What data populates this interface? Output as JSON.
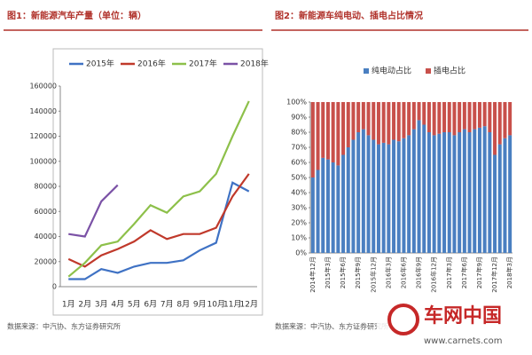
{
  "chart_data": [
    {
      "type": "line",
      "title": "图1：新能源汽车产量（单位：辆）",
      "categories": [
        "1月",
        "2月",
        "3月",
        "4月",
        "5月",
        "6月",
        "7月",
        "8月",
        "9月",
        "10月",
        "11月",
        "12月"
      ],
      "series": [
        {
          "name": "2015年",
          "color": "#3f72c4",
          "values": [
            6000,
            6000,
            14000,
            11000,
            16000,
            19000,
            19000,
            21000,
            29000,
            35000,
            83000,
            76000
          ]
        },
        {
          "name": "2016年",
          "color": "#c0392b",
          "values": [
            22000,
            16000,
            25000,
            30000,
            36000,
            45000,
            38000,
            42000,
            42000,
            47000,
            72000,
            90000
          ]
        },
        {
          "name": "2017年",
          "color": "#8dc04a",
          "values": [
            8000,
            19000,
            33000,
            36000,
            50000,
            65000,
            59000,
            72000,
            76000,
            90000,
            120000,
            148000
          ]
        },
        {
          "name": "2018年",
          "color": "#7b52a6",
          "values": [
            42000,
            40000,
            68000,
            81000,
            null,
            null,
            null,
            null,
            null,
            null,
            null,
            null
          ]
        }
      ],
      "ylim": [
        0,
        160000
      ],
      "yticks": [
        0,
        20000,
        40000,
        60000,
        80000,
        100000,
        120000,
        140000,
        160000
      ],
      "source": "数据来源：中汽协、东方证券研究所"
    },
    {
      "type": "bar",
      "stacked": true,
      "title": "图2：新能源车纯电动、插电占比情况",
      "categories": [
        "2014年12月",
        null,
        null,
        "2015年3月",
        null,
        null,
        "2015年6月",
        null,
        null,
        "2015年9月",
        null,
        null,
        "2015年12月",
        null,
        null,
        "2016年3月",
        null,
        null,
        "2016年6月",
        null,
        null,
        "2016年9月",
        null,
        null,
        "2016年12月",
        null,
        null,
        "2017年3月",
        null,
        null,
        "2017年6月",
        null,
        null,
        "2017年9月",
        null,
        null,
        "2017年12月",
        null,
        null,
        "2018年3月"
      ],
      "series": [
        {
          "name": "纯电动占比",
          "color": "#4a7fc1",
          "values": [
            50,
            55,
            63,
            62,
            60,
            58,
            65,
            70,
            75,
            80,
            82,
            78,
            75,
            72,
            73,
            72,
            75,
            74,
            76,
            78,
            82,
            88,
            85,
            80,
            78,
            79,
            80,
            80,
            78,
            80,
            82,
            80,
            82,
            83,
            84,
            80,
            65,
            72,
            76,
            78
          ]
        },
        {
          "name": "插电占比",
          "color": "#c8504b",
          "values": [
            50,
            45,
            37,
            38,
            40,
            42,
            35,
            30,
            25,
            20,
            18,
            22,
            25,
            28,
            27,
            28,
            25,
            26,
            24,
            22,
            18,
            12,
            15,
            20,
            22,
            21,
            20,
            20,
            22,
            20,
            18,
            20,
            18,
            17,
            16,
            20,
            35,
            28,
            24,
            22
          ]
        }
      ],
      "ylim": [
        0,
        100
      ],
      "yticks": [
        {
          "value": 0,
          "label": "0%"
        },
        {
          "value": 10,
          "label": "10%"
        },
        {
          "value": 20,
          "label": "20%"
        },
        {
          "value": 30,
          "label": "30%"
        },
        {
          "value": 40,
          "label": "40%"
        },
        {
          "value": 50,
          "label": "50%"
        },
        {
          "value": 60,
          "label": "60%"
        },
        {
          "value": 70,
          "label": "70%"
        },
        {
          "value": 80,
          "label": "80%"
        },
        {
          "value": 90,
          "label": "90%"
        },
        {
          "value": 100,
          "label": "100%"
        }
      ],
      "source": "数据来源：中汽协、东方证券研究所"
    }
  ],
  "watermark": {
    "name": "车网中国",
    "url": "www.carnets.com"
  }
}
